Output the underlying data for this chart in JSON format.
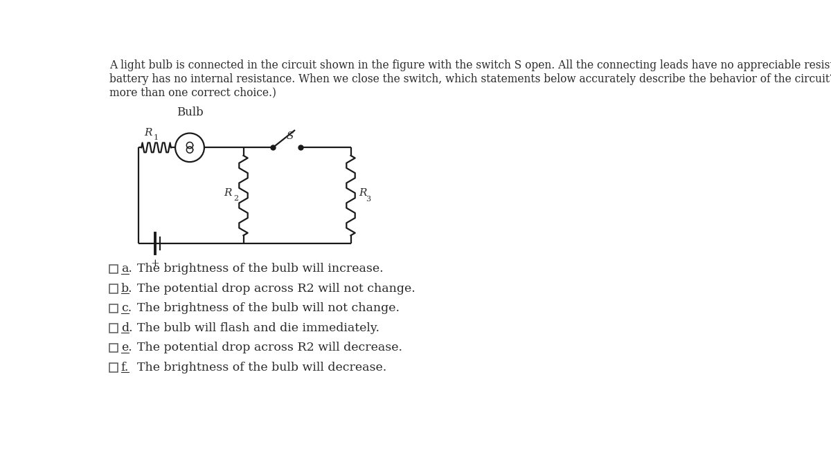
{
  "title_text": "A light bulb is connected in the circuit shown in the figure with the switch S open. All the connecting leads have no appreciable resistance and the\nbattery has no internal resistance. When we close the switch, which statements below accurately describe the behavior of the circuit? (There may be\nmore than one correct choice.)",
  "bulb_label": "Bulb",
  "R1_label": "R",
  "R1_sub": "1",
  "R2_label": "R",
  "R2_sub": "2",
  "R3_label": "R",
  "R3_sub": "3",
  "S_label": "S",
  "choices": [
    {
      "letter": "a",
      "text": "The brightness of the bulb will increase."
    },
    {
      "letter": "b",
      "text": "The potential drop across R2 will not change."
    },
    {
      "letter": "c",
      "text": "The brightness of the bulb will not change."
    },
    {
      "letter": "d",
      "text": "The bulb will flash and die immediately."
    },
    {
      "letter": "e",
      "text": "The potential drop across R2 will decrease."
    },
    {
      "letter": "f",
      "text": "The brightness of the bulb will decrease."
    }
  ],
  "background_color": "#ffffff",
  "text_color": "#2b2b2b",
  "circuit_color": "#1a1a1a",
  "font_size_title": 11.2,
  "font_size_choices": 12.5,
  "font_size_labels": 11
}
